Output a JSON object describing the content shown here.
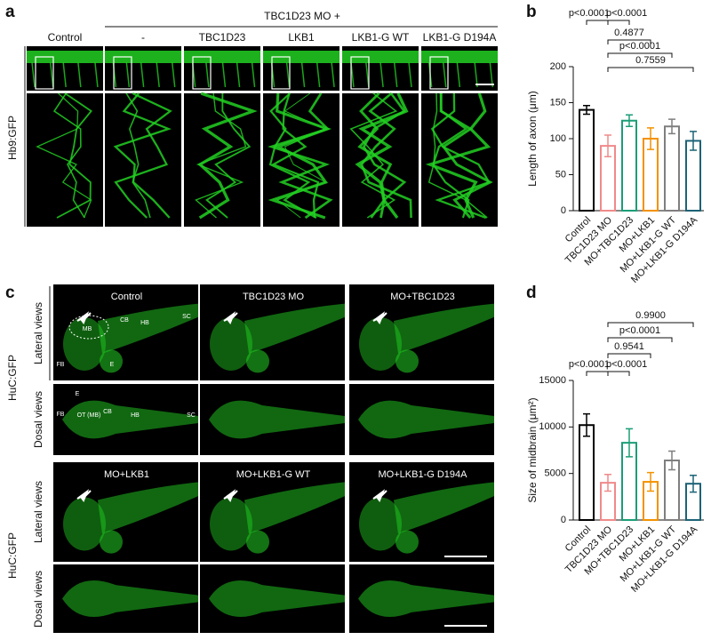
{
  "figure": {
    "panel_a": {
      "label": "a",
      "group_label": "TBC1D23 MO +",
      "columns": [
        "Control",
        "-",
        "TBC1D23",
        "LKB1",
        "LKB1-G WT",
        "LKB1-G D194A"
      ],
      "row_label": "Hb9:GFP"
    },
    "panel_c": {
      "label": "c",
      "columns": [
        "Control",
        "TBC1D23 MO",
        "MO+TBC1D23",
        "MO+LKB1",
        "MO+LKB1-G WT",
        "MO+LKB1-G D194A"
      ],
      "row_labels": [
        "Lateral views",
        "Dosal views"
      ],
      "stain": "HuC:GFP",
      "lateral_annotations": [
        "MB",
        "CB",
        "HB",
        "SC",
        "FB",
        "E"
      ],
      "dorsal_annotations": [
        "E",
        "FB",
        "OT (MB)",
        "CB",
        "HB",
        "SC"
      ]
    }
  },
  "chart_data": [
    {
      "type": "bar",
      "panel_label": "b",
      "y_label": "Length of axon (μm)",
      "categories": [
        "Control",
        "TBC1D23 MO",
        "MO+TBC1D23",
        "MO+LKB1",
        "MO+LKB1-G WT",
        "MO+LKB1-G D194A"
      ],
      "values": [
        140,
        90,
        125,
        100,
        117,
        97
      ],
      "errors": [
        6,
        15,
        8,
        15,
        10,
        13
      ],
      "colors": [
        "#000000",
        "#f08a8a",
        "#1a9e77",
        "#f39200",
        "#7f7f7f",
        "#1c6377"
      ],
      "ylim": [
        0,
        200
      ],
      "yticks": [
        0,
        50,
        100,
        150,
        200
      ],
      "comparisons": [
        {
          "groups": [
            "Control",
            "TBC1D23 MO"
          ],
          "label": "p<0.0001"
        },
        {
          "groups": [
            "TBC1D23 MO",
            "MO+TBC1D23"
          ],
          "label": "p<0.0001"
        },
        {
          "groups": [
            "TBC1D23 MO",
            "MO+LKB1"
          ],
          "label": "0.4877"
        },
        {
          "groups": [
            "TBC1D23 MO",
            "MO+LKB1-G WT"
          ],
          "label": "p<0.0001"
        },
        {
          "groups": [
            "TBC1D23 MO",
            "MO+LKB1-G D194A"
          ],
          "label": "0.7559"
        }
      ]
    },
    {
      "type": "bar",
      "panel_label": "d",
      "y_label": "Size of midbrain (μm²)",
      "categories": [
        "Control",
        "TBC1D23 MO",
        "MO+TBC1D23",
        "MO+LKB1",
        "MO+LKB1-G WT",
        "MO+LKB1-G D194A"
      ],
      "values": [
        10200,
        4000,
        8300,
        4100,
        6400,
        3900
      ],
      "errors": [
        1200,
        900,
        1500,
        1000,
        1000,
        900
      ],
      "colors": [
        "#000000",
        "#f08a8a",
        "#1a9e77",
        "#f39200",
        "#7f7f7f",
        "#1c6377"
      ],
      "ylim": [
        0,
        15000
      ],
      "yticks": [
        0,
        5000,
        10000,
        15000
      ],
      "comparisons": [
        {
          "groups": [
            "TBC1D23 MO",
            "MO+LKB1-G D194A"
          ],
          "label": "0.9900"
        },
        {
          "groups": [
            "TBC1D23 MO",
            "MO+LKB1-G WT"
          ],
          "label": "p<0.0001"
        },
        {
          "groups": [
            "TBC1D23 MO",
            "MO+LKB1"
          ],
          "label": "0.9541"
        },
        {
          "groups": [
            "Control",
            "TBC1D23 MO"
          ],
          "label": "p<0.0001"
        },
        {
          "groups": [
            "TBC1D23 MO",
            "MO+TBC1D23"
          ],
          "label": "p<0.0001"
        }
      ]
    }
  ]
}
